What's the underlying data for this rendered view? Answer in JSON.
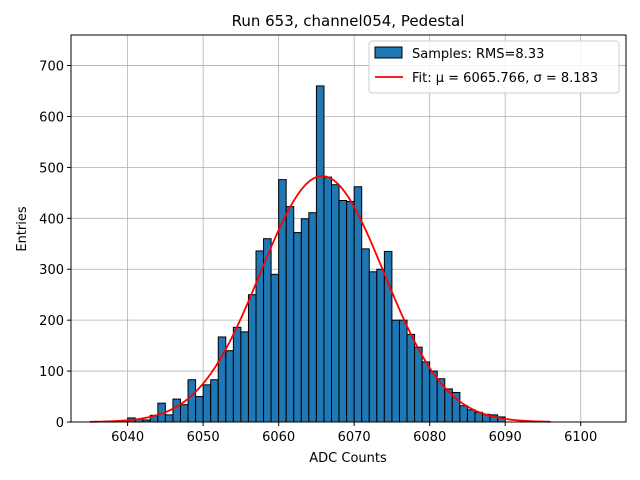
{
  "chart_data": {
    "type": "bar",
    "title": "Run 653, channel054, Pedestal",
    "xlabel": "ADC Counts",
    "ylabel": "Entries",
    "xlim": [
      6032.5,
      6106
    ],
    "ylim": [
      0,
      760
    ],
    "xticks": [
      6040,
      6050,
      6060,
      6070,
      6080,
      6090,
      6100
    ],
    "yticks": [
      0,
      100,
      200,
      300,
      400,
      500,
      600,
      700
    ],
    "grid": true,
    "legend_position": "top-right",
    "histogram": {
      "name": "Samples: RMS=8.33",
      "bin_width": 1,
      "color": "#1f77b4",
      "edgecolor": "#000000",
      "bin_left_edges": [
        6040,
        6041,
        6042,
        6043,
        6044,
        6045,
        6046,
        6047,
        6048,
        6049,
        6050,
        6051,
        6052,
        6053,
        6054,
        6055,
        6056,
        6057,
        6058,
        6059,
        6060,
        6061,
        6062,
        6063,
        6064,
        6065,
        6066,
        6067,
        6068,
        6069,
        6070,
        6071,
        6072,
        6073,
        6074,
        6075,
        6076,
        6077,
        6078,
        6079,
        6080,
        6081,
        6082,
        6083,
        6084,
        6085,
        6086,
        6087,
        6088,
        6089
      ],
      "counts": [
        8,
        6,
        4,
        13,
        37,
        14,
        45,
        34,
        83,
        50,
        73,
        83,
        167,
        140,
        186,
        177,
        250,
        336,
        360,
        290,
        476,
        423,
        372,
        399,
        411,
        660,
        481,
        466,
        435,
        433,
        462,
        340,
        295,
        300,
        335,
        200,
        200,
        172,
        147,
        118,
        100,
        85,
        65,
        58,
        32,
        24,
        19,
        15,
        14,
        10
      ]
    },
    "fit": {
      "name": "Fit: μ = 6065.766, σ = 8.183",
      "mu": 6065.766,
      "sigma": 8.183,
      "amplitude": 483,
      "x_range": [
        6035,
        6096
      ],
      "color": "#ff0000"
    }
  }
}
